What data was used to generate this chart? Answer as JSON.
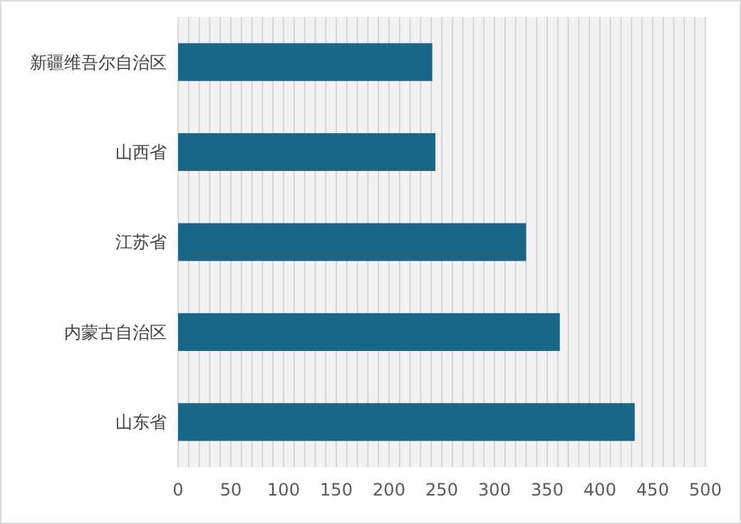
{
  "chart_data": {
    "type": "bar",
    "orientation": "horizontal",
    "categories": [
      "新疆维吾尔自治区",
      "山西省",
      "江苏省",
      "内蒙古自治区",
      "山东省"
    ],
    "values": [
      241,
      244,
      330,
      362,
      433
    ],
    "color": "#1b6688",
    "xlim": [
      0,
      500
    ],
    "xticks": [
      0,
      {
        "value": 10,
        "label": null
      },
      {
        "value": 20,
        "label": null
      },
      {
        "value": 30,
        "label": null
      },
      {
        "value": 40,
        "label": null
      },
      50,
      {
        "value": 60,
        "label": null
      },
      {
        "value": 70,
        "label": null
      },
      {
        "value": 80,
        "label": null
      },
      {
        "value": 90,
        "label": null
      },
      100,
      {
        "value": 110,
        "label": null
      },
      {
        "value": 120,
        "label": null
      },
      {
        "value": 130,
        "label": null
      },
      {
        "value": 140,
        "label": null
      },
      150,
      {
        "value": 160,
        "label": null
      },
      {
        "value": 170,
        "label": null
      },
      {
        "value": 180,
        "label": null
      },
      {
        "value": 190,
        "label": null
      },
      200,
      {
        "value": 210,
        "label": null
      },
      {
        "value": 220,
        "label": null
      },
      {
        "value": 230,
        "label": null
      },
      {
        "value": 240,
        "label": null
      },
      250,
      {
        "value": 260,
        "label": null
      },
      {
        "value": 270,
        "label": null
      },
      {
        "value": 280,
        "label": null
      },
      {
        "value": 290,
        "label": null
      },
      300,
      {
        "value": 310,
        "label": null
      },
      {
        "value": 320,
        "label": null
      },
      {
        "value": 330,
        "label": null
      },
      {
        "value": 340,
        "label": null
      },
      350,
      {
        "value": 360,
        "label": null
      },
      {
        "value": 370,
        "label": null
      },
      {
        "value": 380,
        "label": null
      },
      {
        "value": 390,
        "label": null
      },
      400,
      {
        "value": 410,
        "label": null
      },
      {
        "value": 420,
        "label": null
      },
      {
        "value": 430,
        "label": null
      },
      {
        "value": 440,
        "label": null
      },
      450,
      {
        "value": 460,
        "label": null
      },
      {
        "value": 470,
        "label": null
      },
      {
        "value": 480,
        "label": null
      },
      {
        "value": 490,
        "label": null
      },
      500
    ],
    "grid": "x"
  }
}
